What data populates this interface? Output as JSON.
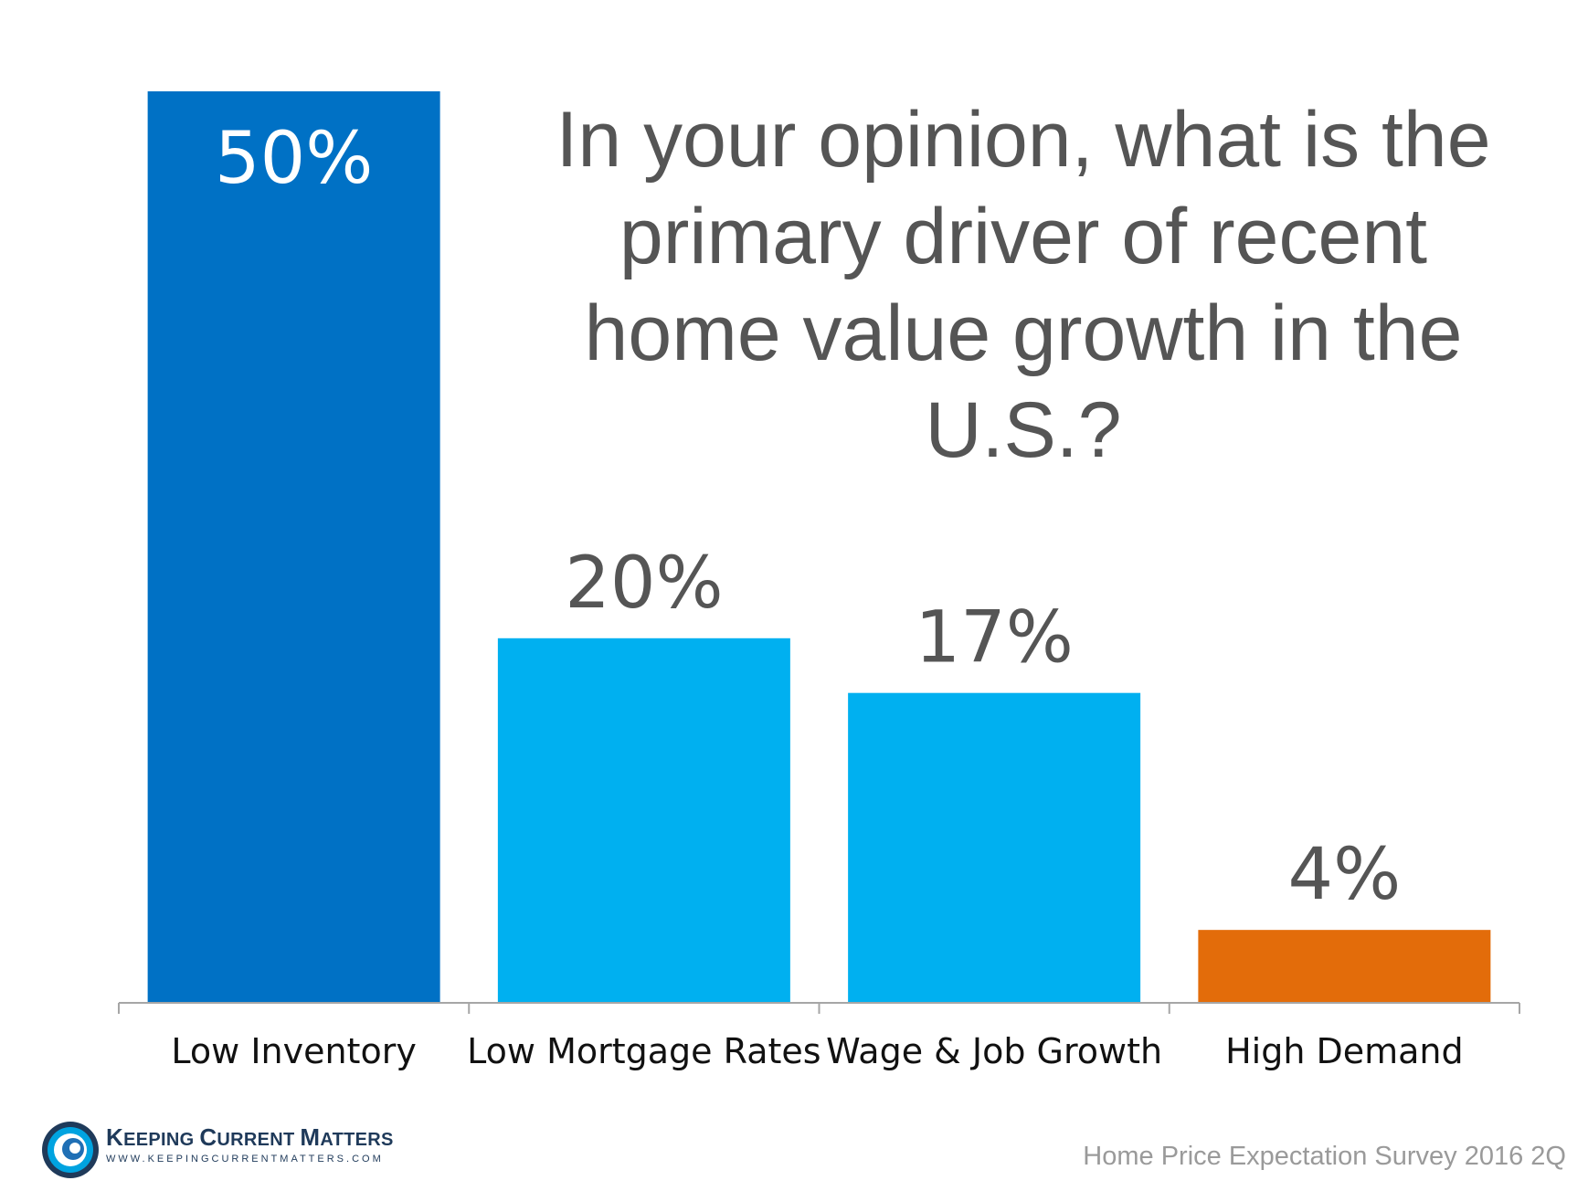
{
  "chart_data": {
    "type": "bar",
    "title_lines": [
      "In your opinion, what is the",
      "primary driver of recent",
      "home value growth in the",
      "U.S.?"
    ],
    "categories": [
      "Low Inventory",
      "Low Mortgage Rates",
      "Wage & Job Growth",
      "High Demand"
    ],
    "values": [
      50,
      20,
      17,
      4
    ],
    "value_labels": [
      "50%",
      "20%",
      "17%",
      "4%"
    ],
    "colors": [
      "#0071c5",
      "#00b0f0",
      "#00b0f0",
      "#e36c0a"
    ],
    "ylim": [
      0,
      50
    ],
    "grid": false
  },
  "footer": {
    "logo_name_1": "K",
    "logo_name_2": "EEPING ",
    "logo_name_3": "C",
    "logo_name_4": "URRENT ",
    "logo_name_5": "M",
    "logo_name_6": "ATTERS",
    "logo_url": "WWW.KEEPINGCURRENTMATTERS.COM",
    "source": "Home Price Expectation Survey 2016 2Q"
  }
}
